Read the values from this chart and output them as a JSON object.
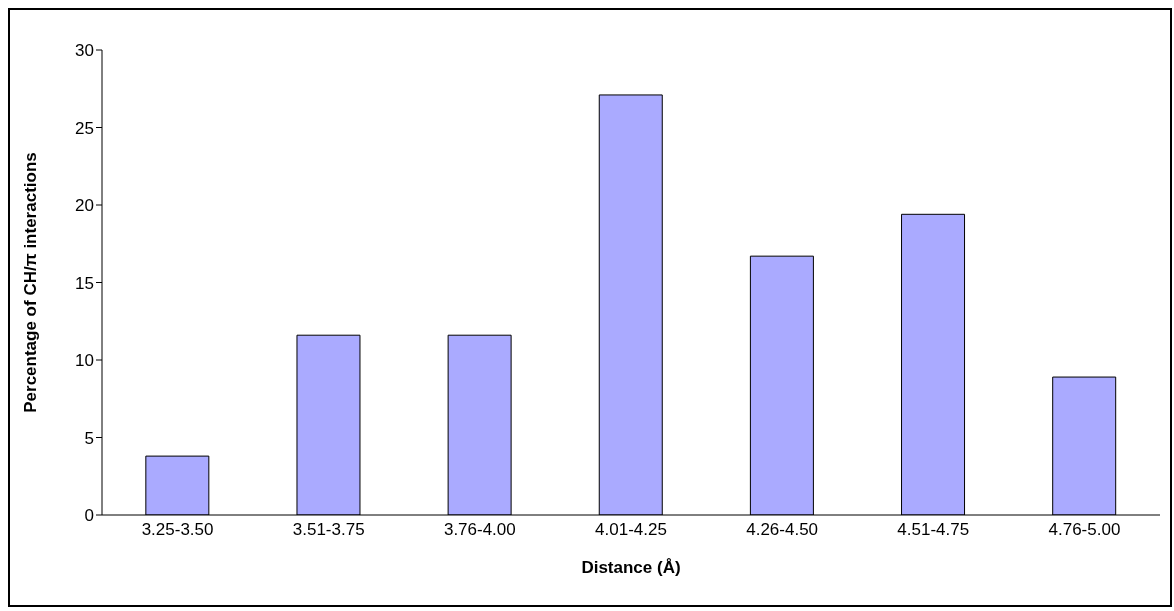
{
  "chart_data": {
    "type": "bar",
    "xlabel": "Distance (Å)",
    "ylabel": "Percentage of CH/π interactions",
    "categories": [
      "3.25-3.50",
      "3.51-3.75",
      "3.76-4.00",
      "4.01-4.25",
      "4.26-4.50",
      "4.51-4.75",
      "4.76-5.00"
    ],
    "values": [
      3.8,
      11.6,
      11.6,
      27.1,
      16.7,
      19.4,
      8.9
    ],
    "color": "#aaaaff",
    "ylim": [
      0,
      30
    ],
    "yticks": [
      0,
      5,
      10,
      15,
      20,
      25,
      30
    ],
    "grid": false
  }
}
